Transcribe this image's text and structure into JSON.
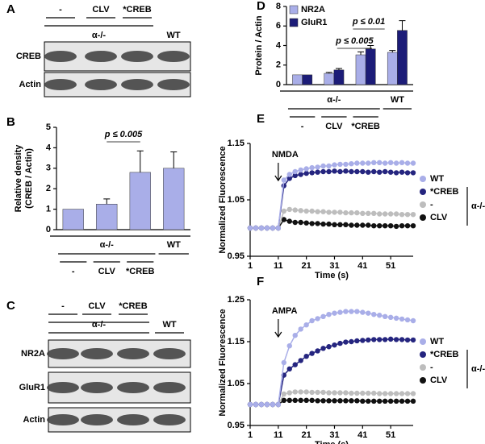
{
  "blots": [
    {
      "panel": "A",
      "lanes": [
        "-",
        "CLV",
        "*CREB",
        "WT"
      ],
      "group_label": "α-/-",
      "rows": [
        "CREB",
        "Actin"
      ]
    },
    {
      "panel": "C",
      "lanes": [
        "-",
        "CLV",
        "*CREB",
        "WT"
      ],
      "group_label": "α-/-",
      "rows": [
        "NR2A",
        "GluR1",
        "Actin"
      ]
    }
  ],
  "chart_data": [
    {
      "type": "bar",
      "panel": "B",
      "ylabel": [
        "Relative density",
        "(CREB / Actin)"
      ],
      "categories": [
        "-",
        "CLV",
        "*CREB",
        "WT"
      ],
      "group_label": "α-/-",
      "values": [
        1,
        1.25,
        2.8,
        3.0
      ],
      "errors": [
        0,
        0.25,
        1.05,
        0.8
      ],
      "color": "#a9aee8",
      "ylim": [
        0,
        5
      ],
      "yticks": [
        0,
        1,
        2,
        3,
        4,
        5
      ],
      "annotations": [
        "p ≤ 0.005"
      ]
    },
    {
      "type": "bar",
      "panel": "D",
      "ylabel": "Protein / Actin",
      "categories": [
        "-",
        "CLV",
        "*CREB",
        "WT"
      ],
      "group_label": "α-/-",
      "series": [
        {
          "name": "NR2A",
          "color": "#a9aee8",
          "values": [
            1,
            1.15,
            3.05,
            3.3
          ],
          "errors": [
            0,
            0.1,
            0.3,
            0.2
          ]
        },
        {
          "name": "GluR1",
          "color": "#1c1c78",
          "values": [
            1,
            1.5,
            3.65,
            5.55
          ],
          "errors": [
            0,
            0.15,
            0.35,
            1.0
          ]
        }
      ],
      "ylim": [
        0,
        8
      ],
      "yticks": [
        0,
        2,
        4,
        6,
        8
      ],
      "annotations": [
        "p ≤ 0.01",
        "p ≤ 0.005"
      ]
    },
    {
      "type": "line",
      "panel": "E",
      "xlabel": "Time (s)",
      "ylabel": "Normalized Fluorescence",
      "annotation": "NMDA",
      "legend_group_label": "α-/-",
      "x": [
        1,
        3,
        5,
        7,
        9,
        11,
        13,
        15,
        17,
        19,
        21,
        23,
        25,
        27,
        29,
        31,
        33,
        35,
        37,
        39,
        41,
        43,
        45,
        47,
        49,
        51,
        53,
        55,
        57,
        59
      ],
      "series": [
        {
          "name": "WT",
          "color": "#a9aee8",
          "values": [
            1,
            1,
            1,
            1,
            1,
            1,
            1.085,
            1.095,
            1.1,
            1.103,
            1.105,
            1.107,
            1.108,
            1.11,
            1.11,
            1.112,
            1.113,
            1.113,
            1.114,
            1.115,
            1.115,
            1.115,
            1.116,
            1.116,
            1.115,
            1.116,
            1.115,
            1.116,
            1.115,
            1.115
          ]
        },
        {
          "name": "*CREB",
          "color": "#25257f",
          "values": [
            1,
            1,
            1,
            1,
            1,
            1,
            1.075,
            1.088,
            1.093,
            1.095,
            1.097,
            1.098,
            1.099,
            1.1,
            1.1,
            1.101,
            1.1,
            1.101,
            1.1,
            1.1,
            1.1,
            1.099,
            1.1,
            1.099,
            1.1,
            1.099,
            1.098,
            1.099,
            1.098,
            1.098
          ]
        },
        {
          "name": "-",
          "color": "#bdbdbd",
          "values": [
            1,
            1,
            1,
            1,
            1,
            1,
            1.03,
            1.033,
            1.032,
            1.031,
            1.03,
            1.03,
            1.029,
            1.029,
            1.028,
            1.028,
            1.028,
            1.027,
            1.027,
            1.027,
            1.026,
            1.026,
            1.026,
            1.025,
            1.025,
            1.025,
            1.025,
            1.024,
            1.024,
            1.024
          ]
        },
        {
          "name": "CLV",
          "color": "#111111",
          "values": [
            1,
            1,
            1,
            1,
            1,
            1,
            1.015,
            1.012,
            1.01,
            1.01,
            1.009,
            1.008,
            1.008,
            1.007,
            1.007,
            1.006,
            1.006,
            1.006,
            1.005,
            1.005,
            1.005,
            1.005,
            1.004,
            1.004,
            1.004,
            1.004,
            1.003,
            1.004,
            1.004,
            1.004
          ]
        }
      ],
      "xlim": [
        1,
        59
      ],
      "xticks": [
        1,
        11,
        21,
        31,
        41,
        51
      ],
      "ylim": [
        0.95,
        1.15
      ],
      "yticks": [
        0.95,
        1.05,
        1.15
      ]
    },
    {
      "type": "line",
      "panel": "F",
      "xlabel": "Time (s)",
      "ylabel": "Normalized Fluorescence",
      "annotation": "AMPA",
      "legend_group_label": "α-/-",
      "x": [
        1,
        3,
        5,
        7,
        9,
        11,
        13,
        15,
        17,
        19,
        21,
        23,
        25,
        27,
        29,
        31,
        33,
        35,
        37,
        39,
        41,
        43,
        45,
        47,
        49,
        51,
        53,
        55,
        57,
        59
      ],
      "series": [
        {
          "name": "WT",
          "color": "#a9aee8",
          "values": [
            1,
            1,
            1,
            1,
            1,
            1,
            1.1,
            1.14,
            1.165,
            1.18,
            1.19,
            1.2,
            1.205,
            1.21,
            1.215,
            1.218,
            1.22,
            1.222,
            1.222,
            1.222,
            1.22,
            1.218,
            1.215,
            1.213,
            1.21,
            1.208,
            1.206,
            1.204,
            1.202,
            1.2
          ]
        },
        {
          "name": "*CREB",
          "color": "#25257f",
          "values": [
            1,
            1,
            1,
            1,
            1,
            1,
            1.07,
            1.085,
            1.095,
            1.105,
            1.115,
            1.122,
            1.128,
            1.134,
            1.138,
            1.142,
            1.146,
            1.149,
            1.15,
            1.152,
            1.153,
            1.154,
            1.155,
            1.155,
            1.155,
            1.156,
            1.155,
            1.155,
            1.154,
            1.154
          ]
        },
        {
          "name": "-",
          "color": "#bdbdbd",
          "values": [
            1,
            1,
            1,
            1,
            1,
            1,
            1.025,
            1.028,
            1.03,
            1.03,
            1.03,
            1.029,
            1.029,
            1.029,
            1.028,
            1.028,
            1.028,
            1.028,
            1.027,
            1.027,
            1.027,
            1.027,
            1.027,
            1.026,
            1.026,
            1.026,
            1.026,
            1.026,
            1.026,
            1.026
          ]
        },
        {
          "name": "CLV",
          "color": "#111111",
          "values": [
            1,
            1,
            1,
            1,
            1,
            1,
            1.01,
            1.01,
            1.01,
            1.01,
            1.01,
            1.01,
            1.009,
            1.009,
            1.009,
            1.009,
            1.009,
            1.009,
            1.009,
            1.009,
            1.008,
            1.008,
            1.008,
            1.008,
            1.008,
            1.008,
            1.008,
            1.008,
            1.008,
            1.008
          ]
        }
      ],
      "xlim": [
        1,
        59
      ],
      "xticks": [
        1,
        11,
        21,
        31,
        41,
        51
      ],
      "ylim": [
        0.95,
        1.25
      ],
      "yticks": [
        0.95,
        1.05,
        1.15,
        1.25
      ]
    }
  ]
}
